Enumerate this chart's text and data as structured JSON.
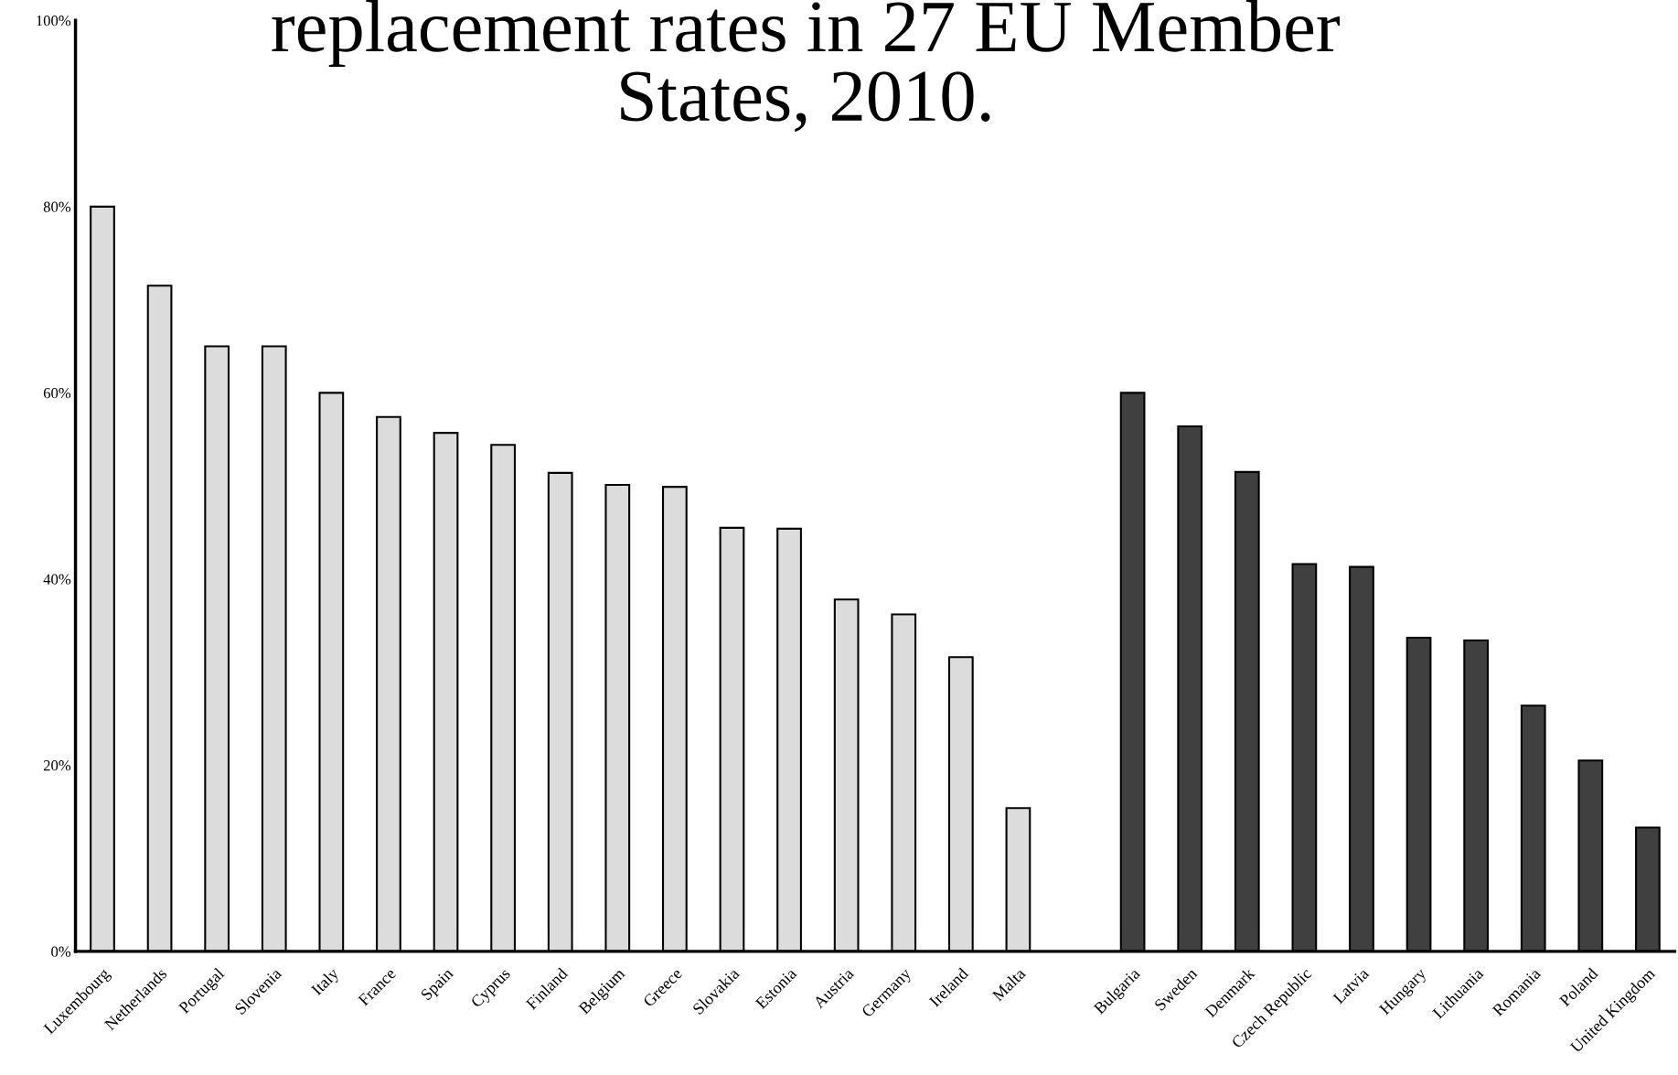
{
  "chart_data": {
    "type": "bar",
    "title": "replacement rates in 27 EU Member\nStates, 2010.",
    "categories": [
      "Luxembourg",
      "Netherlands",
      "Portugal",
      "Slovenia",
      "Italy",
      "France",
      "Spain",
      "Cyprus",
      "Finland",
      "Belgium",
      "Greece",
      "Slovakia",
      "Estonia",
      "Austria",
      "Germany",
      "Ireland",
      "Malta",
      null,
      "Bulgaria",
      "Sweden",
      "Denmark",
      "Czech Republic",
      "Latvia",
      "Hungary",
      "Lithuania",
      "Romania",
      "Poland",
      "United Kingdom"
    ],
    "values": [
      80.0,
      71.5,
      65,
      65,
      60,
      57.4,
      55.7,
      54.4,
      51.4,
      50.1,
      49.9,
      45.5,
      45.4,
      37.8,
      36.2,
      31.6,
      15.4,
      null,
      60,
      56.4,
      51.5,
      41.6,
      41.3,
      33.7,
      33.4,
      26.4,
      20.5,
      13.3
    ],
    "colors": [
      "#dcdcdc",
      "#dcdcdc",
      "#dcdcdc",
      "#dcdcdc",
      "#dcdcdc",
      "#dcdcdc",
      "#dcdcdc",
      "#dcdcdc",
      "#dcdcdc",
      "#dcdcdc",
      "#dcdcdc",
      "#dcdcdc",
      "#dcdcdc",
      "#dcdcdc",
      "#dcdcdc",
      "#dcdcdc",
      "#dcdcdc",
      null,
      "#404040",
      "#404040",
      "#404040",
      "#404040",
      "#404040",
      "#404040",
      "#404040",
      "#404040",
      "#404040",
      "#404040"
    ],
    "ylim": [
      0,
      100
    ],
    "yticks": [
      {
        "value": 0,
        "label": "0%"
      },
      {
        "value": 20,
        "label": "20%"
      },
      {
        "value": 40,
        "label": "40%"
      },
      {
        "value": 60,
        "label": "60%"
      },
      {
        "value": 80,
        "label": "80%"
      },
      {
        "value": 100,
        "label": "100%"
      }
    ],
    "grid": false,
    "legend": false
  }
}
